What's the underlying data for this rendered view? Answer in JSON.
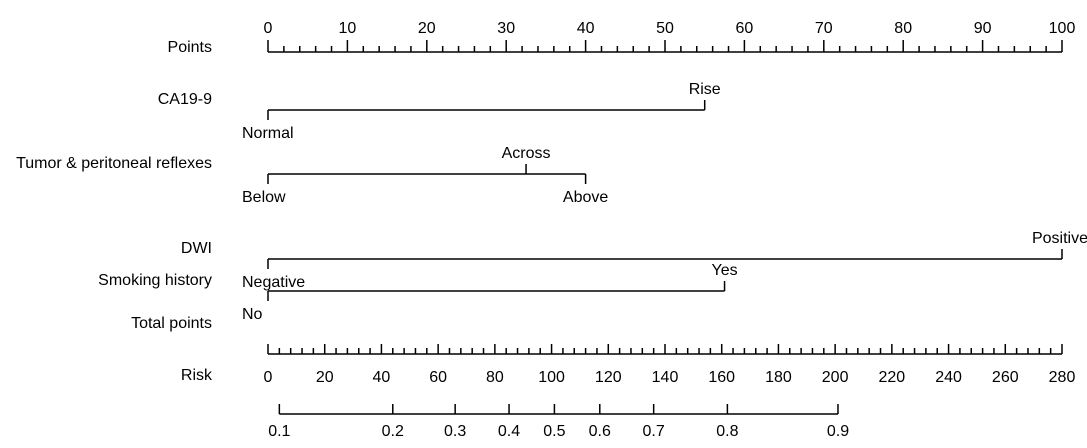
{
  "chart_data": {
    "type": "nomogram",
    "points_axis": {
      "label": "Points",
      "min": 0,
      "max": 100,
      "major_ticks": [
        0,
        10,
        20,
        30,
        40,
        50,
        60,
        70,
        80,
        90,
        100
      ],
      "minor_step": 2
    },
    "variables": [
      {
        "name": "CA19-9",
        "levels": [
          {
            "label": "Normal",
            "points": 0,
            "side": "below"
          },
          {
            "label": "Rise",
            "points": 55,
            "side": "above"
          }
        ]
      },
      {
        "name": "Tumor & peritoneal reflexes",
        "levels": [
          {
            "label": "Below",
            "points": 0,
            "side": "below"
          },
          {
            "label": "Across",
            "points": 32.5,
            "side": "above"
          },
          {
            "label": "Above",
            "points": 40,
            "side": "below"
          }
        ]
      },
      {
        "name": "DWI",
        "levels": [
          {
            "label": "Negative",
            "points": 0,
            "side": "below"
          },
          {
            "label": "Positive",
            "points": 100,
            "side": "above"
          }
        ]
      },
      {
        "name": "Smoking history",
        "levels": [
          {
            "label": "No",
            "points": 0,
            "side": "below"
          },
          {
            "label": "Yes",
            "points": 57.5,
            "side": "above"
          }
        ]
      }
    ],
    "total_points_axis": {
      "label": "Total points",
      "min": 0,
      "max": 280,
      "major_ticks": [
        0,
        20,
        40,
        60,
        80,
        100,
        120,
        140,
        160,
        180,
        200,
        220,
        240,
        260,
        280
      ],
      "minor_step": 4
    },
    "risk_axis": {
      "label": "Risk",
      "ticks": [
        {
          "label": "0.1",
          "total_points": 4
        },
        {
          "label": "0.2",
          "total_points": 44
        },
        {
          "label": "0.3",
          "total_points": 66
        },
        {
          "label": "0.4",
          "total_points": 85
        },
        {
          "label": "0.5",
          "total_points": 101
        },
        {
          "label": "0.6",
          "total_points": 117
        },
        {
          "label": "0.7",
          "total_points": 136
        },
        {
          "label": "0.8",
          "total_points": 162
        },
        {
          "label": "0.9",
          "total_points": 201
        }
      ]
    }
  }
}
